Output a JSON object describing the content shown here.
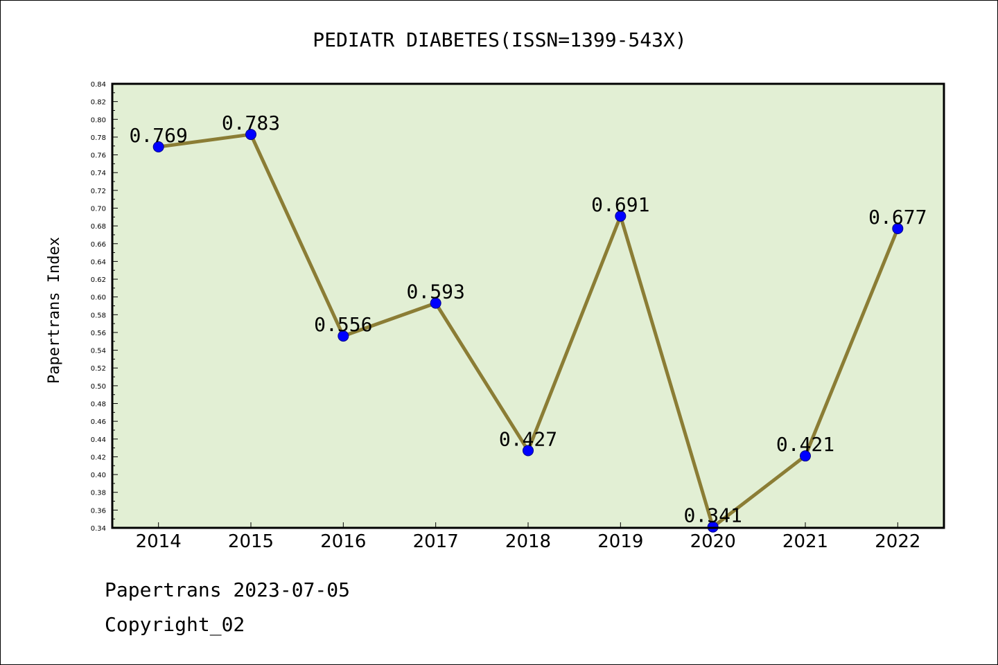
{
  "chart_data": {
    "type": "line",
    "title": "PEDIATR DIABETES(ISSN=1399-543X)",
    "xlabel": "",
    "ylabel": "Papertrans Index",
    "categories": [
      "2014",
      "2015",
      "2016",
      "2017",
      "2018",
      "2019",
      "2020",
      "2021",
      "2022"
    ],
    "series": [
      {
        "values": [
          0.769,
          0.783,
          0.556,
          0.593,
          0.427,
          0.691,
          0.341,
          0.421,
          0.677
        ],
        "labels": [
          "0.769",
          "0.783",
          "0.556",
          "0.593",
          "0.427",
          "0.691",
          "0.341",
          "0.421",
          "0.677"
        ]
      }
    ],
    "ylim": [
      0.34,
      0.84
    ],
    "yticks": [
      "0.34",
      "0.36",
      "0.38",
      "0.40",
      "0.42",
      "0.44",
      "0.46",
      "0.48",
      "0.50",
      "0.52",
      "0.54",
      "0.56",
      "0.58",
      "0.60",
      "0.62",
      "0.64",
      "0.66",
      "0.68",
      "0.70",
      "0.72",
      "0.74",
      "0.76",
      "0.78",
      "0.80",
      "0.82",
      "0.84"
    ],
    "grid": false,
    "colors": {
      "plot_background": "#e2efd4",
      "line": "#8b7d35",
      "marker": "#0000ff",
      "marker_edge": "#00008b"
    }
  },
  "footer": {
    "date_line": "Papertrans 2023-07-05",
    "copyright_line": "Copyright_02"
  }
}
